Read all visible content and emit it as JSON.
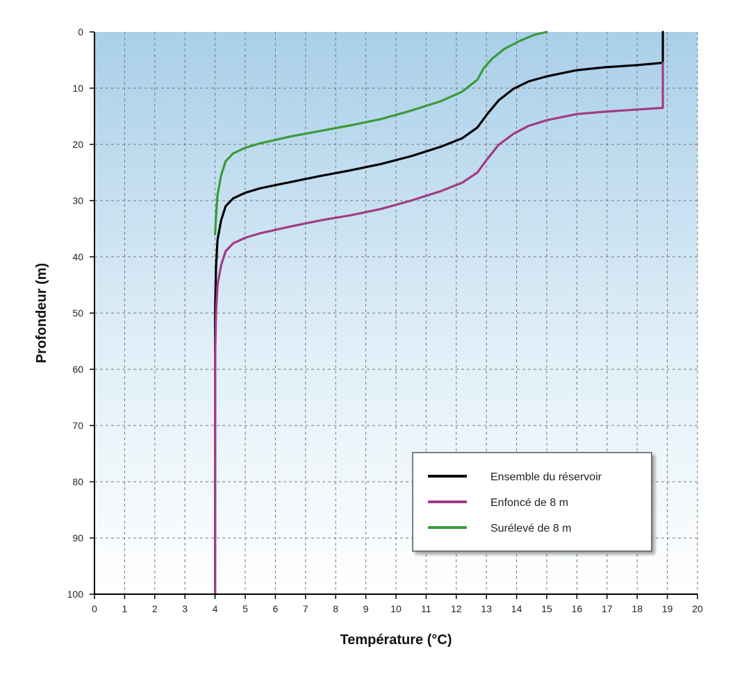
{
  "chart_data": {
    "type": "line",
    "title": "",
    "xlabel": "Température (°C)",
    "ylabel": "Profondeur (m)",
    "xlim": [
      0,
      20
    ],
    "ylim": [
      0,
      100
    ],
    "y_inverted": true,
    "x_axis_position": "bottom",
    "grid": true,
    "grid_style": "dashed",
    "background": "sky-gradient",
    "legend_position": "bottom-right",
    "xticks": [
      "0",
      "1",
      "2",
      "3",
      "4",
      "5",
      "6",
      "7",
      "8",
      "9",
      "10",
      "11",
      "12",
      "13",
      "14",
      "15",
      "16",
      "17",
      "18",
      "19",
      "20"
    ],
    "yticks": [
      "0",
      "10",
      "20",
      "30",
      "40",
      "50",
      "60",
      "70",
      "80",
      "90",
      "100"
    ],
    "series": [
      {
        "name": "Ensemble du réservoir",
        "color": "#000000",
        "points": [
          [
            18.85,
            0
          ],
          [
            18.85,
            5.5
          ],
          [
            18.0,
            5.9
          ],
          [
            16.9,
            6.3
          ],
          [
            16.0,
            6.8
          ],
          [
            15.0,
            7.9
          ],
          [
            14.4,
            8.8
          ],
          [
            13.9,
            10.1
          ],
          [
            13.4,
            12.2
          ],
          [
            13.0,
            14.8
          ],
          [
            12.7,
            17.0
          ],
          [
            12.2,
            18.9
          ],
          [
            11.5,
            20.4
          ],
          [
            10.5,
            22.1
          ],
          [
            9.5,
            23.5
          ],
          [
            8.5,
            24.6
          ],
          [
            7.5,
            25.6
          ],
          [
            6.5,
            26.7
          ],
          [
            5.5,
            27.8
          ],
          [
            5.0,
            28.6
          ],
          [
            4.6,
            29.6
          ],
          [
            4.35,
            31.0
          ],
          [
            4.2,
            33.5
          ],
          [
            4.08,
            37.0
          ],
          [
            4.03,
            42.0
          ],
          [
            4.0,
            50.0
          ],
          [
            4.0,
            100.0
          ]
        ]
      },
      {
        "name": "Enfoncé de 8 m",
        "color": "#a23a86",
        "points": [
          [
            18.85,
            5.5
          ],
          [
            18.85,
            13.5
          ],
          [
            18.0,
            13.8
          ],
          [
            16.9,
            14.2
          ],
          [
            16.0,
            14.6
          ],
          [
            15.0,
            15.7
          ],
          [
            14.4,
            16.7
          ],
          [
            13.9,
            18.1
          ],
          [
            13.4,
            20.1
          ],
          [
            13.0,
            22.8
          ],
          [
            12.7,
            25.0
          ],
          [
            12.2,
            26.8
          ],
          [
            11.5,
            28.3
          ],
          [
            10.5,
            30.0
          ],
          [
            9.5,
            31.5
          ],
          [
            8.5,
            32.6
          ],
          [
            7.5,
            33.5
          ],
          [
            6.5,
            34.6
          ],
          [
            5.5,
            35.8
          ],
          [
            5.0,
            36.6
          ],
          [
            4.6,
            37.6
          ],
          [
            4.35,
            39.0
          ],
          [
            4.2,
            41.5
          ],
          [
            4.08,
            45.0
          ],
          [
            4.03,
            50.0
          ],
          [
            4.0,
            58.0
          ],
          [
            4.0,
            100.0
          ]
        ]
      },
      {
        "name": "Surélevé de 8 m",
        "color": "#3a9a3a",
        "points": [
          [
            15.0,
            0
          ],
          [
            14.6,
            0.5
          ],
          [
            14.1,
            1.6
          ],
          [
            13.6,
            3.0
          ],
          [
            13.2,
            4.7
          ],
          [
            12.9,
            6.5
          ],
          [
            12.7,
            8.5
          ],
          [
            12.2,
            10.6
          ],
          [
            11.5,
            12.3
          ],
          [
            10.5,
            14.0
          ],
          [
            9.5,
            15.5
          ],
          [
            8.5,
            16.6
          ],
          [
            7.5,
            17.6
          ],
          [
            6.5,
            18.6
          ],
          [
            5.5,
            19.8
          ],
          [
            5.0,
            20.6
          ],
          [
            4.6,
            21.6
          ],
          [
            4.35,
            23.0
          ],
          [
            4.2,
            25.5
          ],
          [
            4.08,
            29.0
          ],
          [
            4.03,
            33.0
          ],
          [
            4.0,
            36.0
          ]
        ]
      }
    ]
  }
}
